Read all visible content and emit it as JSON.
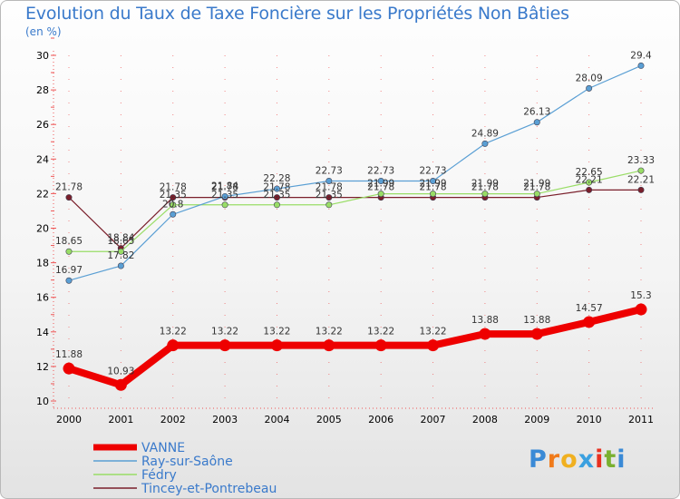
{
  "chart_data": {
    "type": "line",
    "title": "Evolution du Taux de Taxe Foncière sur les Propriétés Non Bâties",
    "ylabel": "(en %)",
    "xlabel": "",
    "x": [
      "2000",
      "2001",
      "2002",
      "2003",
      "2004",
      "2005",
      "2006",
      "2007",
      "2008",
      "2009",
      "2010",
      "2011"
    ],
    "ylim": [
      10,
      30
    ],
    "yticks": [
      "10",
      "12",
      "14",
      "16",
      "18",
      "20",
      "22",
      "24",
      "26",
      "28",
      "30"
    ],
    "series": [
      {
        "name": "VANNE",
        "color": "#ee0000",
        "values": [
          11.88,
          10.93,
          13.22,
          13.22,
          13.22,
          13.22,
          13.22,
          13.22,
          13.88,
          13.88,
          14.57,
          15.3
        ],
        "labels": [
          "11.88",
          "10.93",
          "13.22",
          "13.22",
          "13.22",
          "13.22",
          "13.22",
          "13.22",
          "13.88",
          "13.88",
          "14.57",
          "15.3"
        ]
      },
      {
        "name": "Ray-sur-Saône",
        "color": "#5a9fd4",
        "values": [
          16.97,
          17.82,
          20.8,
          21.84,
          22.28,
          22.73,
          22.73,
          22.73,
          24.89,
          26.13,
          28.09,
          29.4
        ],
        "labels": [
          "16.97",
          "17.82",
          "20.8",
          "21.84",
          "22.28",
          "22.73",
          "22.73",
          "22.73",
          "24.89",
          "26.13",
          "28.09",
          "29.4"
        ]
      },
      {
        "name": "Fédry",
        "color": "#99dd66",
        "values": [
          18.65,
          18.65,
          21.35,
          21.35,
          21.35,
          21.35,
          21.99,
          21.99,
          21.99,
          21.99,
          22.65,
          23.33
        ],
        "labels": [
          "18.65",
          "18.65",
          "21.35",
          "21.35",
          "21.35",
          "21.35",
          "21.99",
          "21.99",
          "21.99",
          "21.99",
          "22.65",
          "23.33"
        ]
      },
      {
        "name": "Tincey-et-Pontrebeau",
        "color": "#7a1f2b",
        "values": [
          21.78,
          18.84,
          21.78,
          21.78,
          21.78,
          21.78,
          21.78,
          21.78,
          21.78,
          21.78,
          22.21,
          22.21
        ],
        "labels": [
          "21.78",
          "18.84",
          "21.78",
          "21.78",
          "21.78",
          "21.78",
          "21.78",
          "21.78",
          "21.78",
          "21.78",
          "22.21",
          "22.21"
        ]
      }
    ]
  },
  "brand": {
    "letters": [
      "P",
      "r",
      "o",
      "x",
      "i",
      "t",
      "i"
    ],
    "colors": [
      "#3a8ad6",
      "#f07a1a",
      "#f0b020",
      "#3aa0e0",
      "#e83020",
      "#7ab030",
      "#3a8ad6"
    ]
  }
}
